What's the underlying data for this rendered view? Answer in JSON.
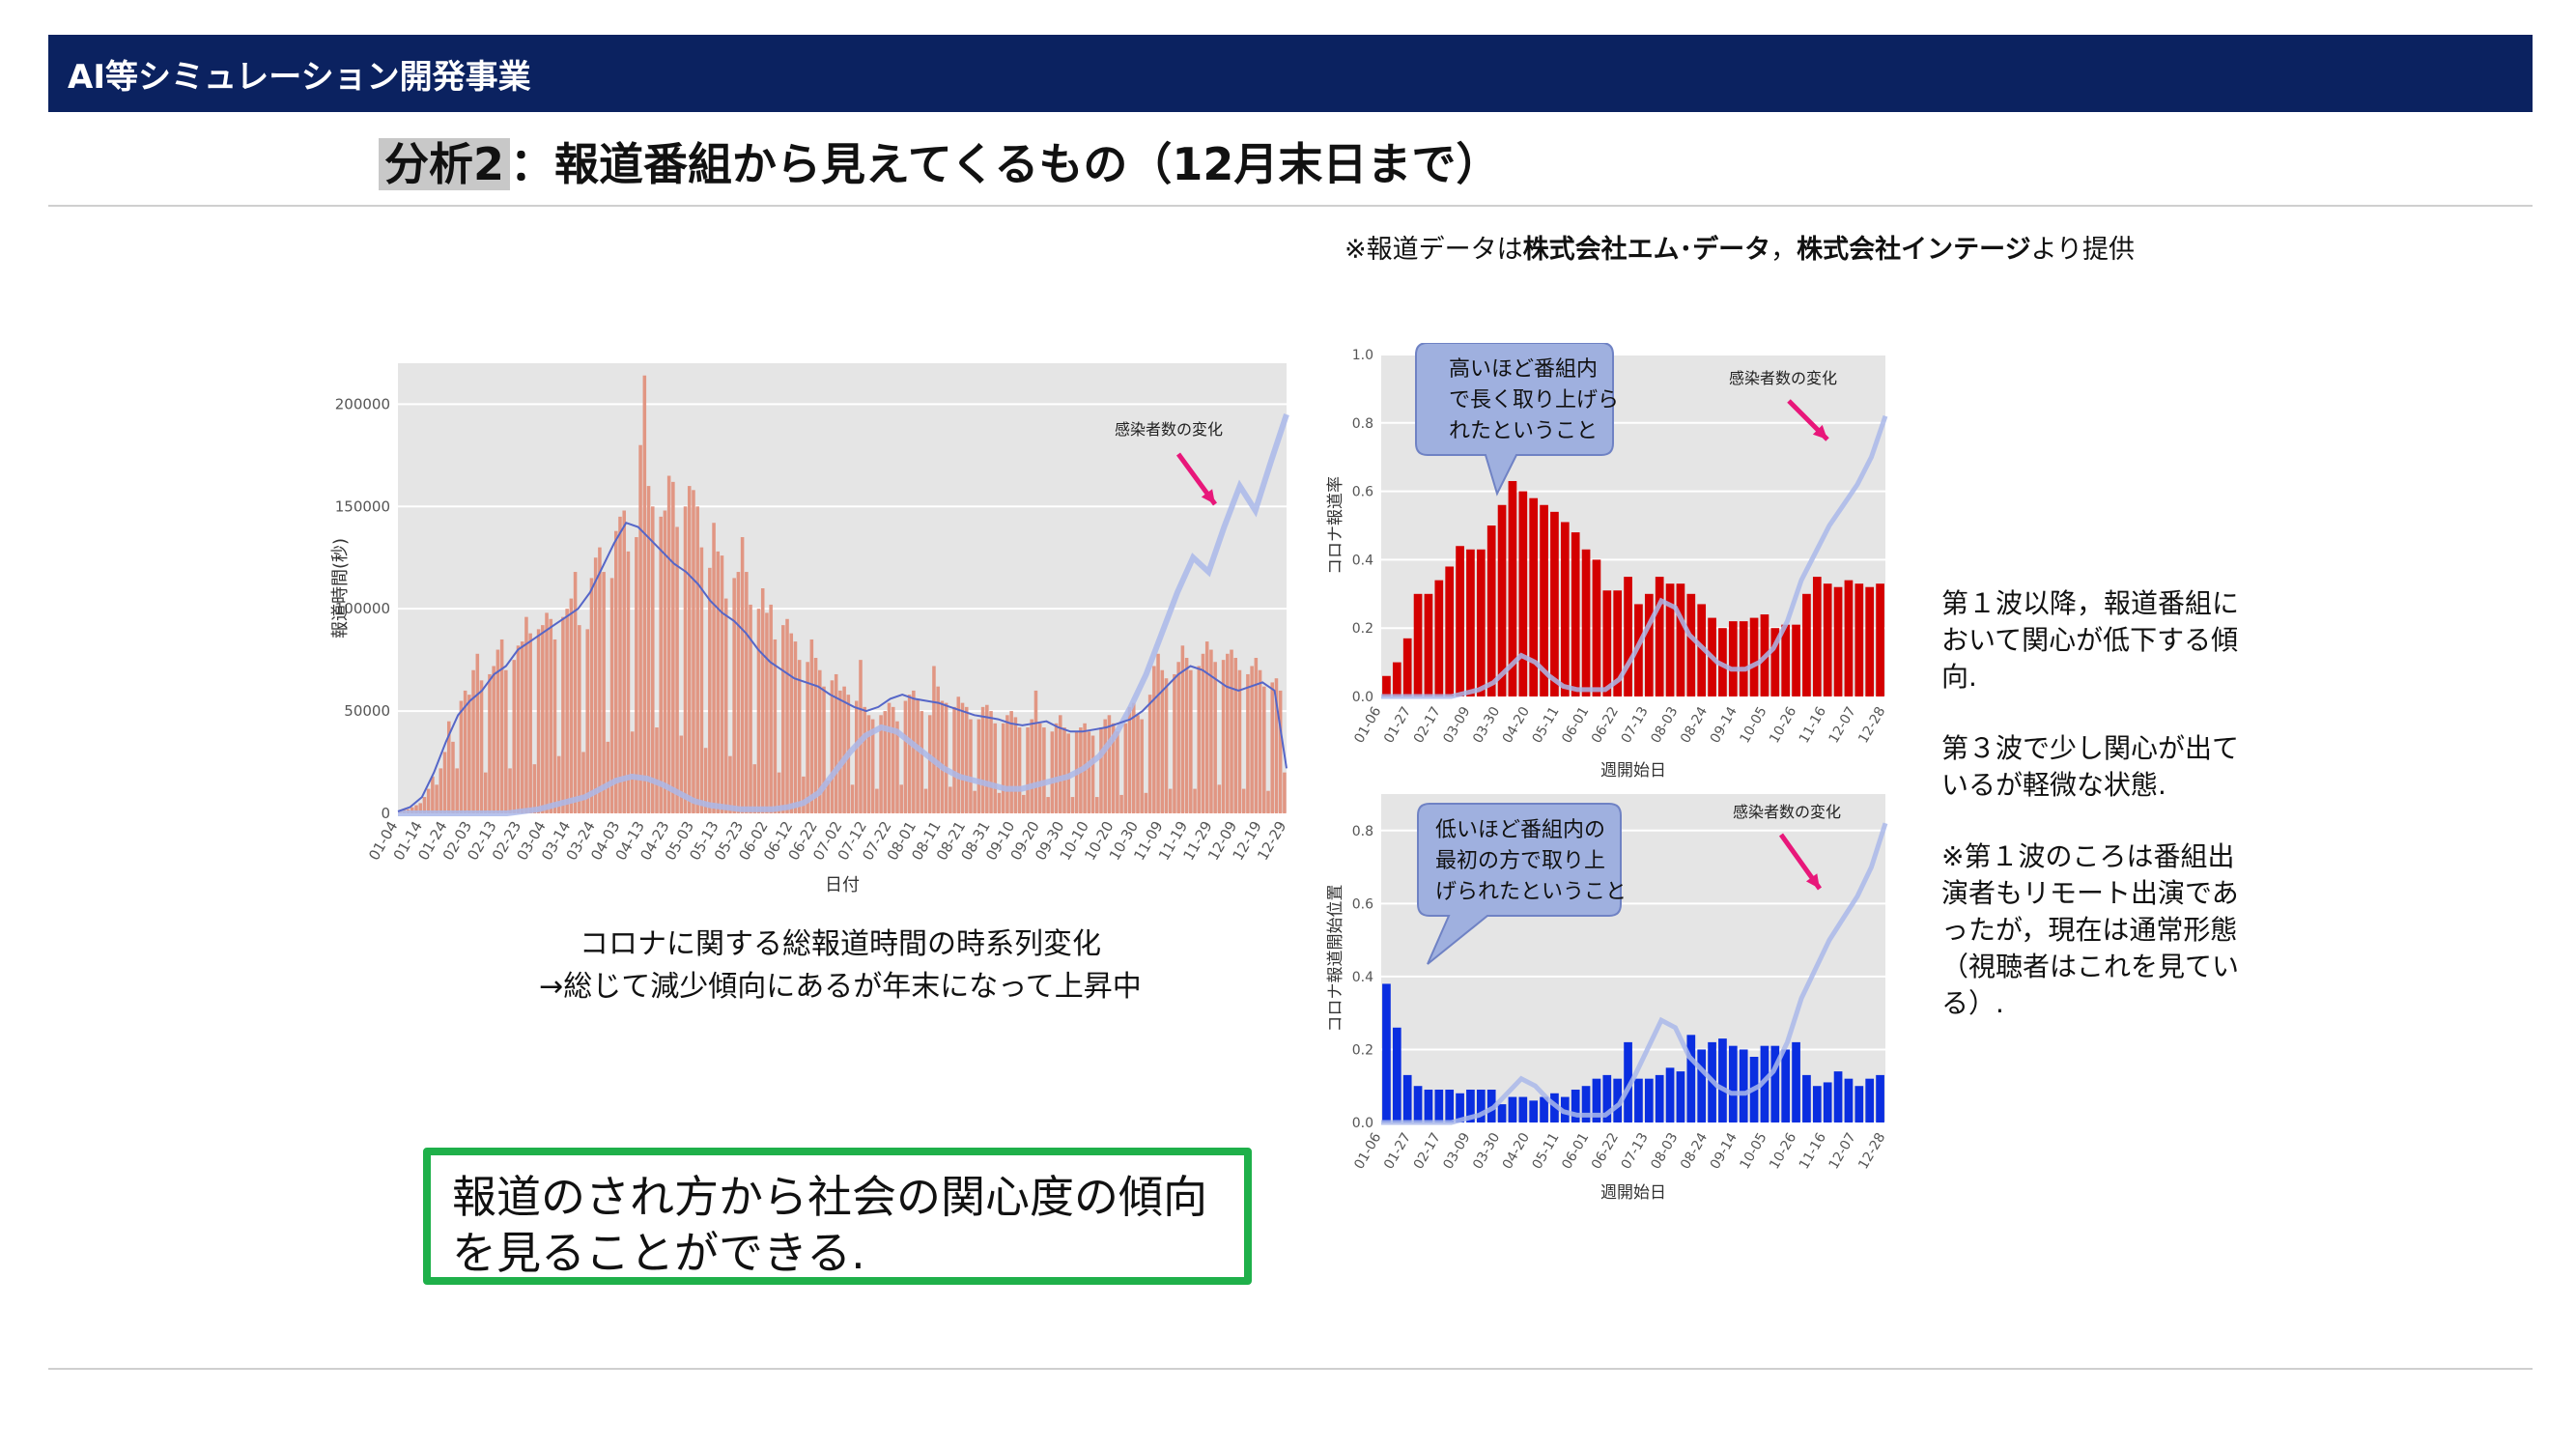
{
  "header": {
    "title": "AI等シミュレーション開発事業"
  },
  "slide": {
    "title_highlight": "分析2",
    "title_rest": "：報道番組から見えてくるもの（12月末日まで）",
    "source_prefix": "※報道データは",
    "source_company1": "株式会社エム･データ",
    "source_sep": "，",
    "source_company2": "株式会社インテージ",
    "source_suffix": "より提供",
    "caption_line1": "コロナに関する総報道時間の時系列変化",
    "caption_line2": "→総じて減少傾向にあるが年末になって上昇中",
    "conclusion_line1": "報道のされ方から社会の関心度の傾向",
    "conclusion_line2": "を見ることができる.",
    "right_note_1": "第１波以降，報道番組において関心が低下する傾向.",
    "right_note_2": "第３波で少し関心が出ているが軽微な状態.",
    "right_note_3": "※第１波のころは番組出演者もリモート出演であったが，現在は通常形態（視聴者はこれを見ている）."
  },
  "colors": {
    "header_bg": "#0b2260",
    "bar_salmon": "#e0917d",
    "line_main": "#5566c8",
    "infection_line": "#aab8ea",
    "bar_red": "#d40000",
    "bar_blue": "#0a2ee0",
    "callout_fill": "#9fb0df",
    "arrow": "#e8177a",
    "plot_bg": "#e5e5e5",
    "conclusion_border": "#1fb04a"
  },
  "chart_data": [
    {
      "type": "bar",
      "id": "total_time",
      "xlabel": "日付",
      "ylabel": "報道時間(秒)",
      "ylim": [
        0,
        220000
      ],
      "yticks": [
        0,
        50000,
        100000,
        150000,
        200000
      ],
      "xticks": [
        "01-04",
        "01-14",
        "01-24",
        "02-03",
        "02-13",
        "02-23",
        "03-04",
        "03-14",
        "03-24",
        "04-03",
        "04-13",
        "04-23",
        "05-03",
        "05-13",
        "05-23",
        "06-02",
        "06-12",
        "06-22",
        "07-02",
        "07-12",
        "07-22",
        "08-01",
        "08-11",
        "08-21",
        "08-31",
        "09-10",
        "09-20",
        "09-30",
        "10-10",
        "10-20",
        "10-30",
        "11-09",
        "11-19",
        "11-29",
        "12-09",
        "12-19",
        "12-29"
      ],
      "annotation": "感染者数の変化",
      "daily_values": [
        1000,
        2000,
        2000,
        3000,
        4000,
        5000,
        8000,
        12000,
        18000,
        14000,
        22000,
        30000,
        45000,
        35000,
        22000,
        55000,
        60000,
        58000,
        70000,
        78000,
        65000,
        20000,
        68000,
        72000,
        80000,
        85000,
        70000,
        22000,
        75000,
        82000,
        84000,
        96000,
        88000,
        24000,
        90000,
        92000,
        98000,
        95000,
        85000,
        28000,
        96000,
        100000,
        105000,
        118000,
        92000,
        30000,
        90000,
        115000,
        125000,
        130000,
        118000,
        35000,
        115000,
        138000,
        145000,
        148000,
        128000,
        40000,
        135000,
        180000,
        214000,
        160000,
        150000,
        42000,
        145000,
        148000,
        165000,
        162000,
        140000,
        38000,
        150000,
        160000,
        158000,
        150000,
        130000,
        32000,
        120000,
        142000,
        128000,
        126000,
        105000,
        28000,
        115000,
        118000,
        135000,
        118000,
        102000,
        24000,
        100000,
        110000,
        98000,
        102000,
        85000,
        20000,
        92000,
        95000,
        88000,
        84000,
        75000,
        18000,
        74000,
        85000,
        76000,
        70000,
        62000,
        16000,
        65000,
        68000,
        60000,
        62000,
        58000,
        14000,
        55000,
        75000,
        52000,
        48000,
        46000,
        12000,
        48000,
        50000,
        54000,
        52000,
        45000,
        14000,
        55000,
        58000,
        60000,
        56000,
        50000,
        12000,
        48000,
        72000,
        62000,
        55000,
        54000,
        13000,
        52000,
        57000,
        54000,
        52000,
        46000,
        11000,
        46000,
        52000,
        53000,
        50000,
        44000,
        10000,
        44000,
        48000,
        50000,
        47000,
        42000,
        9000,
        42000,
        46000,
        60000,
        44000,
        42000,
        8000,
        40000,
        44000,
        48000,
        42000,
        39000,
        8000,
        40000,
        42000,
        44000,
        40000,
        38000,
        8000,
        42000,
        46000,
        48000,
        44000,
        40000,
        9000,
        44000,
        52000,
        54000,
        48000,
        46000,
        10000,
        58000,
        72000,
        78000,
        70000,
        66000,
        12000,
        68000,
        74000,
        82000,
        76000,
        70000,
        12000,
        72000,
        78000,
        84000,
        80000,
        74000,
        14000,
        75000,
        78000,
        80000,
        76000,
        70000,
        12000,
        68000,
        72000,
        76000,
        70000,
        62000,
        11000,
        64000,
        66000,
        60000,
        20000
      ],
      "trend_values": [
        1000,
        3000,
        8000,
        20000,
        35000,
        48000,
        55000,
        60000,
        68000,
        72000,
        80000,
        84000,
        88000,
        92000,
        96000,
        100000,
        108000,
        120000,
        132000,
        142000,
        140000,
        134000,
        128000,
        122000,
        118000,
        112000,
        104000,
        98000,
        94000,
        88000,
        80000,
        74000,
        70000,
        66000,
        64000,
        62000,
        58000,
        55000,
        52000,
        50000,
        52000,
        56000,
        58000,
        56000,
        55000,
        54000,
        52000,
        50000,
        48000,
        47000,
        46000,
        44000,
        43000,
        44000,
        45000,
        42000,
        40000,
        40000,
        41000,
        42000,
        44000,
        46000,
        50000,
        56000,
        62000,
        68000,
        72000,
        70000,
        66000,
        62000,
        60000,
        62000,
        64000,
        60000,
        22000
      ],
      "infection_values": [
        0,
        0,
        0,
        0,
        0,
        0,
        0,
        0,
        1000,
        2000,
        4000,
        6000,
        8000,
        12000,
        16000,
        18000,
        17000,
        14000,
        10000,
        6000,
        4000,
        3000,
        2000,
        2000,
        2000,
        3000,
        5000,
        10000,
        20000,
        30000,
        38000,
        42000,
        40000,
        34000,
        28000,
        22000,
        18000,
        16000,
        14000,
        12000,
        12000,
        14000,
        16000,
        18000,
        22000,
        28000,
        38000,
        52000,
        68000,
        88000,
        108000,
        125000,
        118000,
        140000,
        160000,
        148000,
        172000,
        195000
      ]
    },
    {
      "type": "bar",
      "id": "coverage_rate",
      "xlabel": "週開始日",
      "ylabel": "コロナ報道率",
      "ylim": [
        0,
        1.0
      ],
      "yticks": [
        0.0,
        0.2,
        0.4,
        0.6,
        0.8,
        1.0
      ],
      "xticks": [
        "01-06",
        "01-27",
        "02-17",
        "03-09",
        "03-30",
        "04-20",
        "05-11",
        "06-01",
        "06-22",
        "07-13",
        "08-03",
        "08-24",
        "09-14",
        "10-05",
        "10-26",
        "11-16",
        "12-07",
        "12-28"
      ],
      "callout": [
        "高いほど番組内",
        "で長く取り上げら",
        "れたということ"
      ],
      "annotation": "感染者数の変化",
      "values": [
        0.06,
        0.1,
        0.17,
        0.3,
        0.3,
        0.34,
        0.38,
        0.44,
        0.43,
        0.43,
        0.5,
        0.56,
        0.63,
        0.6,
        0.58,
        0.56,
        0.54,
        0.51,
        0.48,
        0.43,
        0.4,
        0.31,
        0.31,
        0.35,
        0.27,
        0.3,
        0.35,
        0.33,
        0.33,
        0.3,
        0.27,
        0.23,
        0.2,
        0.22,
        0.22,
        0.23,
        0.24,
        0.2,
        0.21,
        0.21,
        0.3,
        0.35,
        0.33,
        0.32,
        0.34,
        0.33,
        0.32,
        0.33
      ],
      "infection_values": [
        0,
        0,
        0,
        0,
        0,
        0,
        0.01,
        0.02,
        0.04,
        0.08,
        0.12,
        0.1,
        0.06,
        0.03,
        0.02,
        0.02,
        0.02,
        0.05,
        0.12,
        0.2,
        0.28,
        0.26,
        0.18,
        0.14,
        0.1,
        0.08,
        0.08,
        0.1,
        0.14,
        0.22,
        0.34,
        0.42,
        0.5,
        0.56,
        0.62,
        0.7,
        0.82
      ]
    },
    {
      "type": "bar",
      "id": "start_position",
      "xlabel": "週開始日",
      "ylabel": "コロナ報道開始位置",
      "ylim": [
        0,
        0.9
      ],
      "yticks": [
        0.0,
        0.2,
        0.4,
        0.6,
        0.8
      ],
      "xticks": [
        "01-06",
        "01-27",
        "02-17",
        "03-09",
        "03-30",
        "04-20",
        "05-11",
        "06-01",
        "06-22",
        "07-13",
        "08-03",
        "08-24",
        "09-14",
        "10-05",
        "10-26",
        "11-16",
        "12-07",
        "12-28"
      ],
      "callout": [
        "低いほど番組内の",
        "最初の方で取り上",
        "げられたということ"
      ],
      "annotation": "感染者数の変化",
      "values": [
        0.38,
        0.26,
        0.13,
        0.1,
        0.09,
        0.09,
        0.09,
        0.08,
        0.09,
        0.09,
        0.09,
        0.05,
        0.07,
        0.07,
        0.06,
        0.07,
        0.08,
        0.07,
        0.09,
        0.1,
        0.12,
        0.13,
        0.12,
        0.22,
        0.12,
        0.12,
        0.13,
        0.15,
        0.14,
        0.24,
        0.2,
        0.22,
        0.23,
        0.21,
        0.2,
        0.18,
        0.21,
        0.21,
        0.2,
        0.22,
        0.13,
        0.1,
        0.11,
        0.14,
        0.12,
        0.1,
        0.12,
        0.13
      ],
      "infection_values": [
        0,
        0,
        0,
        0,
        0,
        0,
        0.01,
        0.02,
        0.04,
        0.08,
        0.12,
        0.1,
        0.06,
        0.03,
        0.02,
        0.02,
        0.02,
        0.05,
        0.12,
        0.2,
        0.28,
        0.26,
        0.18,
        0.14,
        0.1,
        0.08,
        0.08,
        0.1,
        0.14,
        0.22,
        0.34,
        0.42,
        0.5,
        0.56,
        0.62,
        0.7,
        0.82
      ]
    }
  ]
}
